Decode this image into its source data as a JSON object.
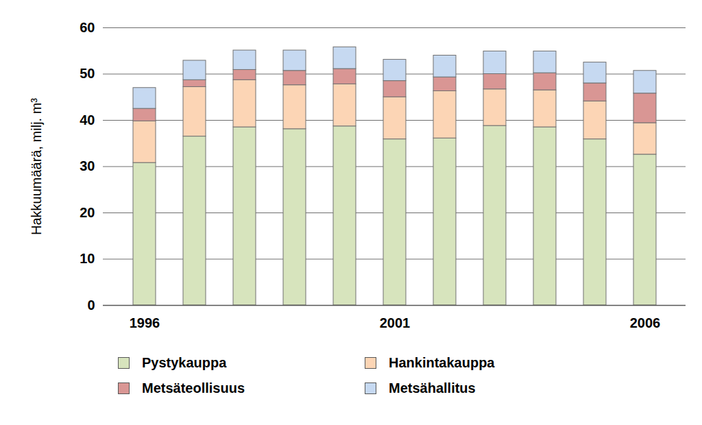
{
  "chart_data": {
    "type": "bar",
    "stacked": true,
    "ylabel": "Hakkuumäärä, milj. m³",
    "categories": [
      1996,
      null,
      null,
      null,
      null,
      2001,
      null,
      null,
      null,
      null,
      2006
    ],
    "series": [
      {
        "name": "Pystykauppa",
        "color": "#d7e4bd",
        "values": [
          30.8,
          36.5,
          38.5,
          38.1,
          38.7,
          35.9,
          36.1,
          38.8,
          38.5,
          35.9,
          32.6
        ]
      },
      {
        "name": "Hankintakauppa",
        "color": "#fcd5b5",
        "values": [
          9.0,
          10.7,
          10.2,
          9.5,
          9.1,
          9.1,
          10.2,
          7.9,
          8.0,
          8.2,
          6.8
        ]
      },
      {
        "name": "Metsäteollisuus",
        "color": "#d99694",
        "values": [
          2.7,
          1.5,
          2.2,
          3.1,
          3.3,
          3.5,
          3.0,
          3.3,
          3.7,
          3.9,
          6.4
        ]
      },
      {
        "name": "Metsähallitus",
        "color": "#c6d9f1",
        "values": [
          4.5,
          4.2,
          4.2,
          4.4,
          4.7,
          4.6,
          4.7,
          4.9,
          4.7,
          4.5,
          4.9
        ]
      }
    ],
    "ylim": [
      0,
      60
    ],
    "yticks": [
      0,
      10,
      20,
      30,
      40,
      50,
      60
    ],
    "grid": true,
    "legend": "bottom"
  }
}
